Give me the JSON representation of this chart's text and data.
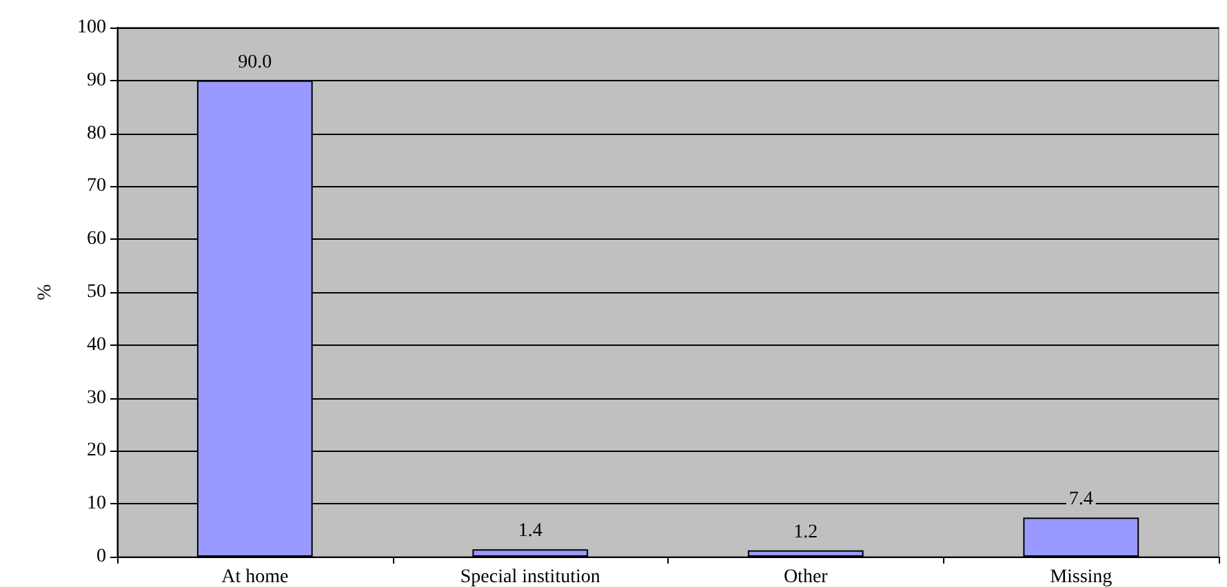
{
  "chart_data": {
    "type": "bar",
    "ylabel": "%",
    "categories": [
      "At home",
      "Special institution",
      "Other",
      "Missing"
    ],
    "values": [
      90.0,
      1.4,
      1.2,
      7.4
    ],
    "value_labels": [
      "90.0",
      "1.4",
      "1.2",
      "7.4"
    ],
    "color": "#9999ff",
    "ylim": [
      0,
      100
    ],
    "yticks": [
      0,
      10,
      20,
      30,
      40,
      50,
      60,
      70,
      80,
      90,
      100
    ],
    "grid": "y"
  }
}
